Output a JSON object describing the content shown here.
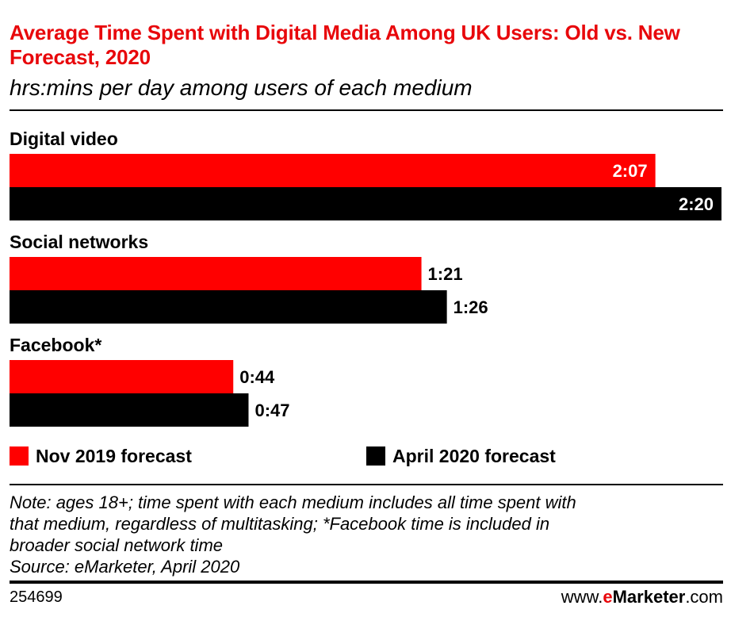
{
  "header": {
    "title": "Average Time Spent with Digital Media Among UK Users: Old vs. New Forecast, 2020",
    "subtitle": "hrs:mins per day among users of each medium"
  },
  "chart_data": {
    "type": "bar",
    "orientation": "horizontal",
    "title": "Average Time Spent with Digital Media Among UK Users: Old vs. New Forecast, 2020",
    "subtitle": "hrs:mins per day among users of each medium",
    "categories": [
      "Digital video",
      "Social networks",
      "Facebook*"
    ],
    "series": [
      {
        "name": "Nov 2019 forecast",
        "color": "#ff0000",
        "values": [
          127,
          81,
          44
        ],
        "labels": [
          "2:07",
          "1:21",
          "0:44"
        ]
      },
      {
        "name": "April 2020 forecast",
        "color": "#000000",
        "values": [
          140,
          86,
          47
        ],
        "labels": [
          "2:20",
          "1:26",
          "0:47"
        ]
      }
    ],
    "value_unit": "minutes",
    "xlim": [
      0,
      140
    ],
    "grid": false,
    "legend_placement": "bottom"
  },
  "legend": {
    "items": [
      {
        "label": "Nov 2019 forecast",
        "color": "#ff0000"
      },
      {
        "label": "April 2020 forecast",
        "color": "#000000"
      }
    ]
  },
  "note": {
    "line1": "Note: ages 18+; time spent with each medium includes all time spent with",
    "line2": "that medium, regardless of multitasking; *Facebook time is included in",
    "line3": "broader social network time",
    "source": "Source: eMarketer, April 2020"
  },
  "footer": {
    "chart_id": "254699",
    "brand_prefix": "www.",
    "brand_accent": "e",
    "brand_name": "Marketer",
    "brand_suffix": ".com"
  }
}
